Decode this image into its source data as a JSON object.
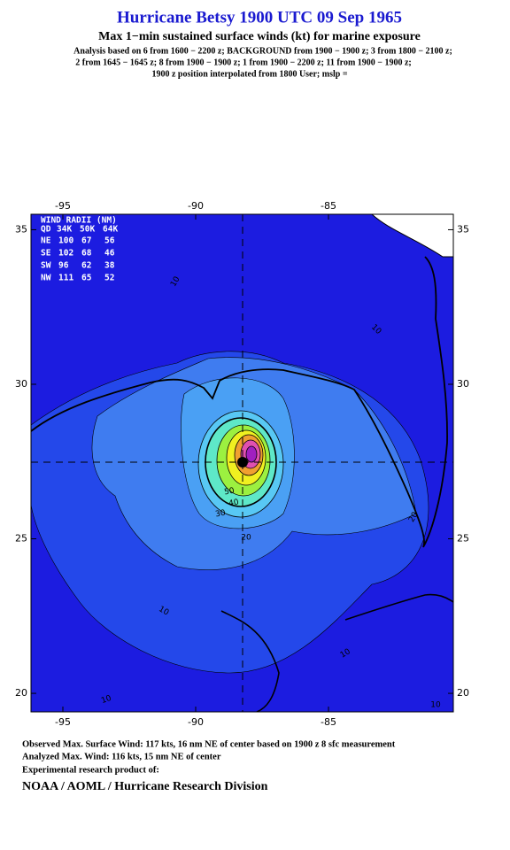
{
  "header": {
    "title": "Hurricane Betsy 1900 UTC 09 Sep 1965",
    "subtitle": "Max 1−min sustained surface winds (kt) for marine exposure",
    "analysis": [
      "Analysis based on  6 from 1600 − 2200 z;  BACKGROUND from 1900 − 1900 z;  3 from 1800 − 2100 z;",
      "2 from 1645 − 1645 z;  8 from 1900 − 1900 z;  1 from 1900 − 2200 z;  11 from 1900 − 1900 z;",
      "1900 z position interpolated from 1800 User; mslp ="
    ]
  },
  "map": {
    "lon_range": [
      -96.2,
      -80.3
    ],
    "lat_range": [
      19.4,
      35.5
    ],
    "lon_ticks": [
      -95,
      -90,
      -85
    ],
    "lat_ticks": [
      35,
      30,
      25,
      20
    ],
    "contour_labels": [
      10,
      10,
      10,
      10,
      10,
      10,
      20,
      20,
      30,
      40,
      50
    ]
  },
  "wind_radii": {
    "title": "WIND RADII (NM)",
    "columns": [
      "QD",
      "34K",
      "50K",
      "64K"
    ],
    "rows": [
      [
        "NE",
        100,
        67,
        56
      ],
      [
        "SE",
        102,
        68,
        46
      ],
      [
        "SW",
        96,
        62,
        38
      ],
      [
        "NW",
        111,
        65,
        52
      ]
    ]
  },
  "footer": {
    "lines": [
      "Observed Max. Surface Wind: 117 kts, 16 nm NE of center based on 1900 z 8 sfc measurement",
      "Analyzed Max. Wind: 116 kts, 15 nm NE of center",
      "Experimental research product of:"
    ],
    "org": "NOAA / AOML / Hurricane Research Division"
  }
}
